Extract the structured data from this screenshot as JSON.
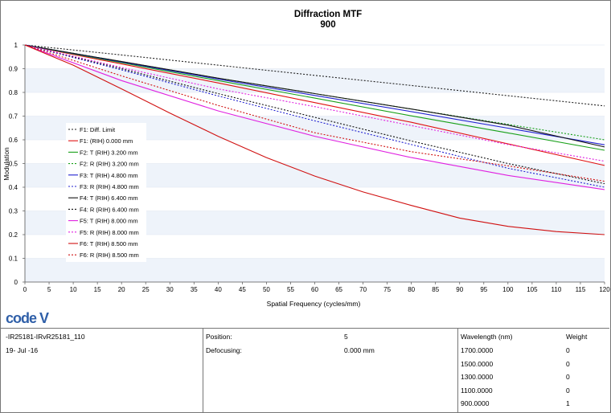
{
  "chart_data": {
    "type": "line",
    "title": "Diffraction MTF",
    "subtitle": "900",
    "xlabel": "Spatial Frequency (cycles/mm)",
    "ylabel": "Modulation",
    "xlim": [
      0,
      120
    ],
    "ylim": [
      0,
      1
    ],
    "x_ticks": [
      "0",
      "5",
      "10",
      "15",
      "20",
      "25",
      "30",
      "35",
      "40",
      "45",
      "50",
      "55",
      "60",
      "65",
      "70",
      "75",
      "80",
      "85",
      "90",
      "95",
      "100",
      "105",
      "110",
      "115",
      "120"
    ],
    "y_ticks": [
      "0",
      "0.1",
      "0.2",
      "0.3",
      "0.4",
      "0.5",
      "0.6",
      "0.7",
      "0.8",
      "0.9",
      "1"
    ],
    "legend_position": "center-left",
    "series": [
      {
        "name": "F1: Diff. Limit",
        "color": "#222222",
        "style": "dotted",
        "x": [
          0,
          20,
          40,
          60,
          80,
          100,
          120
        ],
        "y": [
          1.0,
          0.958,
          0.915,
          0.872,
          0.829,
          0.786,
          0.743
        ]
      },
      {
        "name": "F1: (RIH) 0.000 mm",
        "color": "#e01010",
        "style": "solid",
        "x": [
          0,
          20,
          40,
          60,
          80,
          100,
          120
        ],
        "y": [
          1.0,
          0.92,
          0.84,
          0.757,
          0.674,
          0.583,
          0.492
        ]
      },
      {
        "name": "F2: T (RIH) 3.200 mm",
        "color": "#18a018",
        "style": "solid",
        "x": [
          0,
          20,
          40,
          60,
          80,
          100,
          120
        ],
        "y": [
          1.0,
          0.925,
          0.85,
          0.776,
          0.701,
          0.629,
          0.556
        ]
      },
      {
        "name": "F2: R (RIH) 3.200 mm",
        "color": "#18a018",
        "style": "dotted",
        "x": [
          0,
          20,
          40,
          60,
          80,
          100,
          120
        ],
        "y": [
          1.0,
          0.93,
          0.86,
          0.795,
          0.73,
          0.665,
          0.6
        ]
      },
      {
        "name": "F3: T (RIH) 4.800 mm",
        "color": "#2020d0",
        "style": "solid",
        "x": [
          0,
          20,
          40,
          60,
          80,
          100,
          120
        ],
        "y": [
          1.0,
          0.928,
          0.856,
          0.787,
          0.719,
          0.649,
          0.579
        ]
      },
      {
        "name": "F3: R (RIH) 4.800 mm",
        "color": "#2020d0",
        "style": "dotted",
        "x": [
          0,
          20,
          40,
          60,
          80,
          100,
          120
        ],
        "y": [
          1.0,
          0.895,
          0.785,
          0.68,
          0.58,
          0.48,
          0.4
        ]
      },
      {
        "name": "F4: T (RIH) 6.400 mm",
        "color": "#111111",
        "style": "solid",
        "x": [
          0,
          20,
          40,
          60,
          80,
          100,
          120
        ],
        "y": [
          1.0,
          0.93,
          0.86,
          0.795,
          0.73,
          0.662,
          0.57
        ]
      },
      {
        "name": "F4: R (RIH) 6.400 mm",
        "color": "#111111",
        "style": "dotted",
        "x": [
          0,
          20,
          40,
          60,
          80,
          100,
          120
        ],
        "y": [
          1.0,
          0.9,
          0.795,
          0.695,
          0.595,
          0.5,
          0.415
        ]
      },
      {
        "name": "F5: T (RIH) 8.000 mm",
        "color": "#e020e0",
        "style": "solid",
        "x": [
          0,
          20,
          40,
          60,
          80,
          100,
          120
        ],
        "y": [
          1.0,
          0.85,
          0.722,
          0.615,
          0.525,
          0.45,
          0.39
        ]
      },
      {
        "name": "F5: R (RIH) 8.000 mm",
        "color": "#e020e0",
        "style": "dotted",
        "x": [
          0,
          20,
          40,
          60,
          80,
          100,
          120
        ],
        "y": [
          1.0,
          0.905,
          0.815,
          0.74,
          0.66,
          0.58,
          0.51
        ]
      },
      {
        "name": "F6: T (RIH) 8.500 mm",
        "color": "#d01010",
        "style": "solid",
        "x": [
          0,
          10,
          20,
          30,
          40,
          50,
          60,
          70,
          80,
          90,
          100,
          110,
          120
        ],
        "y": [
          1.0,
          0.915,
          0.815,
          0.713,
          0.615,
          0.525,
          0.447,
          0.38,
          0.323,
          0.27,
          0.235,
          0.213,
          0.2
        ]
      },
      {
        "name": "F6: R (RIH) 8.500 mm",
        "color": "#d01010",
        "style": "dotted",
        "x": [
          0,
          20,
          40,
          60,
          80,
          100,
          120
        ],
        "y": [
          1.0,
          0.87,
          0.745,
          0.63,
          0.55,
          0.49,
          0.425
        ]
      }
    ]
  },
  "logo_text": "code V",
  "info": {
    "lens_id": "-IR25181-IRvR25181_110",
    "date": "19- Jul -16",
    "position_label": "Position:",
    "position_value": "5",
    "defocusing_label": "Defocusing:",
    "defocusing_value": "0.000 mm",
    "wavelength_header": "Wavelength (nm)",
    "weight_header": "Weight",
    "wavelengths": [
      {
        "wavelength": "1700.0000",
        "weight": "0"
      },
      {
        "wavelength": "1500.0000",
        "weight": "0"
      },
      {
        "wavelength": "1300.0000",
        "weight": "0"
      },
      {
        "wavelength": "1100.0000",
        "weight": "0"
      },
      {
        "wavelength": "900.0000",
        "weight": "1"
      }
    ]
  }
}
